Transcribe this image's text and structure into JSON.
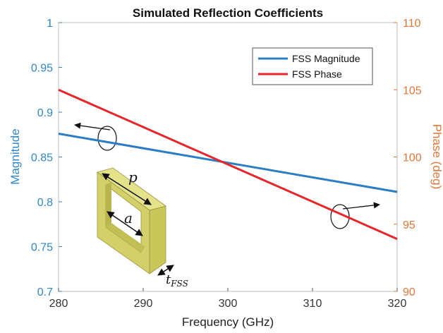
{
  "chart_data": {
    "type": "line",
    "title": "Simulated Reflection Coefficients",
    "xlabel": "Frequency (GHz)",
    "ylabel": "Magnitude",
    "y2label": "Phase (deg)",
    "xlim": [
      280,
      320
    ],
    "ylim": [
      0.7,
      1
    ],
    "y2lim": [
      90,
      110
    ],
    "x_ticks": [
      "280",
      "290",
      "300",
      "310",
      "320"
    ],
    "y_ticks": [
      "0.7",
      "0.75",
      "0.8",
      "0.85",
      "0.9",
      "0.95",
      "1"
    ],
    "y2_ticks": [
      "90",
      "95",
      "100",
      "105",
      "110"
    ],
    "legend_position": "top-right",
    "grid": false,
    "series": [
      {
        "name": "FSS Magnitude",
        "axis": "left",
        "color": "#2a7fc4",
        "x": [
          280,
          320
        ],
        "y": [
          0.876,
          0.811
        ]
      },
      {
        "name": "FSS Phase",
        "axis": "right",
        "color": "#e8262a",
        "x": [
          280,
          320
        ],
        "y": [
          105.0,
          93.9
        ]
      }
    ],
    "annotations": {
      "p_label": "p",
      "a_label": "a",
      "t_label": "t",
      "t_subscript": "FSS"
    }
  },
  "colors": {
    "left_axis": "#2f86c8",
    "right_axis": "#e0773a",
    "frame": "#bcbcbc"
  }
}
